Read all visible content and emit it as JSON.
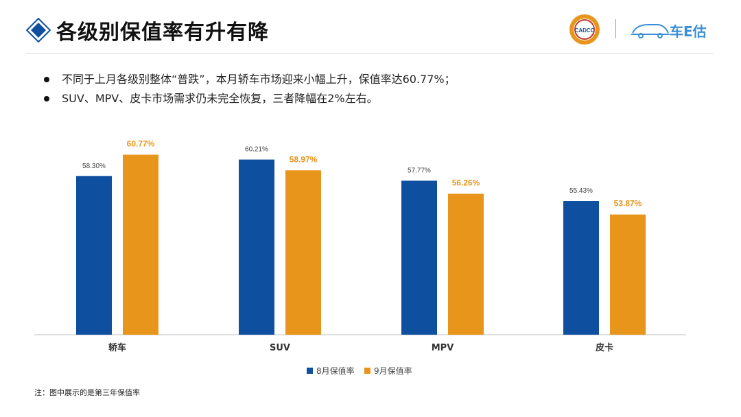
{
  "header": {
    "title": "各级别保值率有升有降",
    "logo_left_text": "CADCC",
    "logo_right_text": "车E估"
  },
  "bullets": [
    "不同于上月各级别整体“普跌”，本月轿车市场迎来小幅上升，保值率达60.77%；",
    "SUV、MPV、皮卡市场需求仍未完全恢复，三者降幅在2%左右。"
  ],
  "colors": {
    "series_aug": "#0e4f9f",
    "series_sep": "#e8951c",
    "title_diamond": "#0e4f9f"
  },
  "chart_data": {
    "type": "bar",
    "categories": [
      "轿车",
      "SUV",
      "MPV",
      "皮卡"
    ],
    "series": [
      {
        "name": "8月保值率",
        "values": [
          58.3,
          60.21,
          57.77,
          55.43
        ],
        "labels": [
          "58.30%",
          "60.21%",
          "57.77%",
          "55.43%"
        ]
      },
      {
        "name": "9月保值率",
        "values": [
          60.77,
          58.97,
          56.26,
          53.87
        ],
        "labels": [
          "60.77%",
          "58.97%",
          "56.26%",
          "53.87%"
        ]
      }
    ],
    "ylim": [
      40,
      62
    ],
    "grid": false,
    "legend_position": "bottom-center",
    "y_axis_visible": false
  },
  "footnote": "注：图中展示的是第三年保值率"
}
